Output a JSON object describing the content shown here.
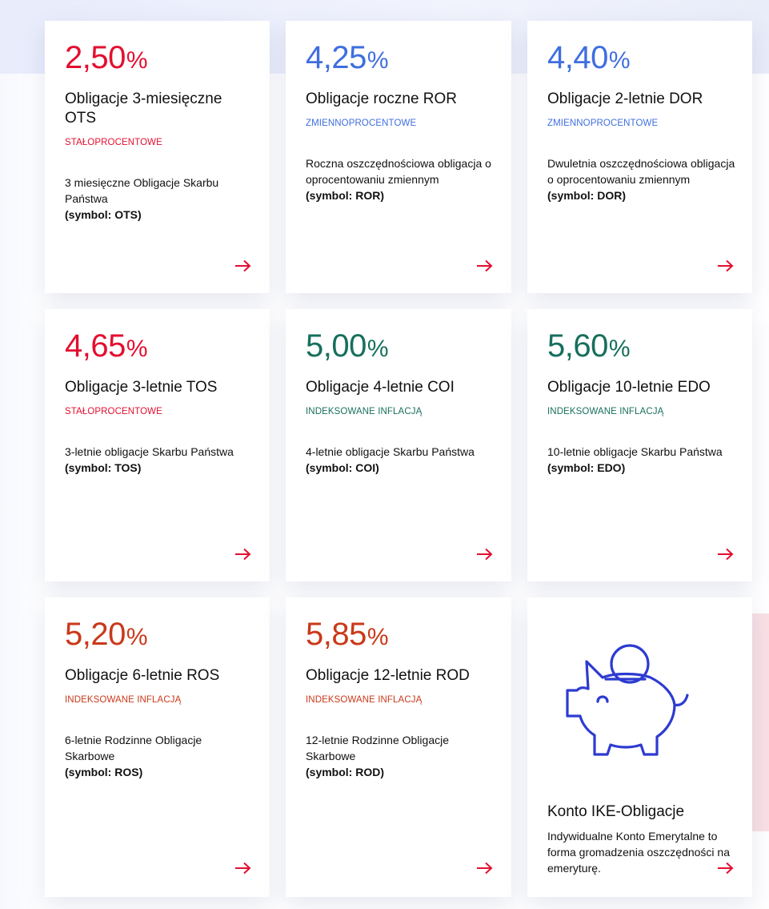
{
  "accent_colors": {
    "red": "#e30f2f",
    "blue": "#3f6ee0",
    "green": "#176f5c",
    "orange": "#c9391a"
  },
  "cards": [
    {
      "rate": "2,50",
      "pct": "%",
      "title": "Obligacje 3-miesięczne OTS",
      "tag": "STAŁOPROCENTOWE",
      "desc": "3 miesięczne Obligacje Skarbu Państwa",
      "symbol": "(symbol: OTS)",
      "arrow_icon": "arrow-right-icon"
    },
    {
      "rate": "4,25",
      "pct": "%",
      "title": "Obligacje roczne ROR",
      "tag": "ZMIENNOPROCENTOWE",
      "desc": "Roczna oszczędnościowa obligacja o oprocentowaniu zmiennym",
      "symbol": "(symbol: ROR)",
      "arrow_icon": "arrow-right-icon"
    },
    {
      "rate": "4,40",
      "pct": "%",
      "title": "Obligacje 2-letnie DOR",
      "tag": "ZMIENNOPROCENTOWE",
      "desc": "Dwuletnia oszczędnościowa obligacja o oprocentowaniu zmiennym",
      "symbol": "(symbol: DOR)",
      "arrow_icon": "arrow-right-icon"
    },
    {
      "rate": "4,65",
      "pct": "%",
      "title": "Obligacje 3-letnie TOS",
      "tag": "STAŁOPROCENTOWE",
      "desc": "3-letnie obligacje Skarbu Państwa",
      "symbol": "(symbol: TOS)",
      "arrow_icon": "arrow-right-icon"
    },
    {
      "rate": "5,00",
      "pct": "%",
      "title": "Obligacje 4-letnie COI",
      "tag": "INDEKSOWANE INFLACJĄ",
      "desc": "4-letnie obligacje Skarbu Państwa",
      "symbol": "(symbol: COI)",
      "arrow_icon": "arrow-right-icon"
    },
    {
      "rate": "5,60",
      "pct": "%",
      "title": "Obligacje 10-letnie EDO",
      "tag": "INDEKSOWANE INFLACJĄ",
      "desc": "10-letnie obligacje Skarbu Państwa",
      "symbol": "(symbol: EDO)",
      "arrow_icon": "arrow-right-icon"
    },
    {
      "rate": "5,20",
      "pct": "%",
      "title": "Obligacje 6-letnie ROS",
      "tag": "INDEKSOWANE INFLACJĄ",
      "desc": "6-letnie Rodzinne Obligacje Skarbowe",
      "symbol": "(symbol: ROS)",
      "arrow_icon": "arrow-right-icon"
    },
    {
      "rate": "5,85",
      "pct": "%",
      "title": "Obligacje 12-letnie ROD",
      "tag": "INDEKSOWANE INFLACJĄ",
      "desc": "12-letnie Rodzinne Obligacje Skarbowe",
      "symbol": "(symbol: ROD)",
      "arrow_icon": "arrow-right-icon"
    }
  ],
  "ike": {
    "icon": "piggy-bank-icon",
    "title": "Konto IKE-Obligacje",
    "desc": "Indywidualne Konto Emerytalne to forma gromadzenia oszczędności na emeryturę.",
    "arrow_icon": "arrow-right-icon"
  }
}
